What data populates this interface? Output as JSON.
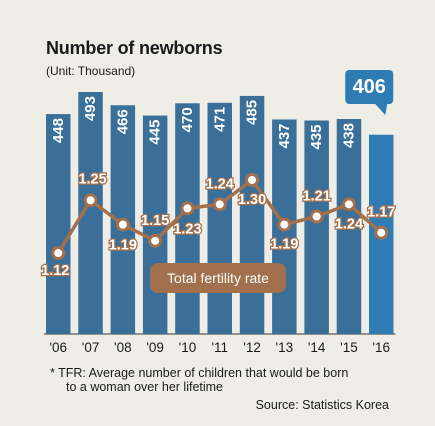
{
  "chart_data": {
    "type": "bar",
    "title": "Number of newborns",
    "subtitle": "(Unit: Thousand)",
    "categories": [
      "'06",
      "'07",
      "'08",
      "'09",
      "'10",
      "'11",
      "'12",
      "'13",
      "'14",
      "'15",
      "'16"
    ],
    "series": [
      {
        "name": "",
        "type": "bar",
        "values": [
          448,
          493,
          466,
          445,
          470,
          471,
          485,
          437,
          435,
          438,
          406
        ],
        "value_labels": [
          "448",
          "493",
          "466",
          "445",
          "470",
          "471",
          "485",
          "437",
          "435",
          "438",
          "406"
        ]
      },
      {
        "name": "Total fertility rate",
        "type": "line",
        "values": [
          1.12,
          1.25,
          1.19,
          1.15,
          1.23,
          1.24,
          1.3,
          1.19,
          1.21,
          1.24,
          1.17
        ],
        "value_labels": [
          "1.12",
          "1.25",
          "1.19",
          "1.15",
          "1.23",
          "1.24",
          "1.30",
          "1.19",
          "1.21",
          "1.24",
          "1.17"
        ]
      }
    ],
    "highlight": {
      "category": "'16",
      "value_label": "406"
    },
    "colors": {
      "bar": "#3a6f9a",
      "bar_highlight": "#2f7cb4",
      "line": "#a2704d",
      "marker_fill": "#ffffff",
      "label_on_bar": "#ffffff",
      "line_label": "#ffffff",
      "rate_label_fill": "#a2704d",
      "callout_fill": "#2f7cb4"
    }
  },
  "footnote": {
    "line1": "* TFR: Average number of children that would be born",
    "line2": "to a woman over her lifetime"
  },
  "source": "Source:  Statistics Korea"
}
